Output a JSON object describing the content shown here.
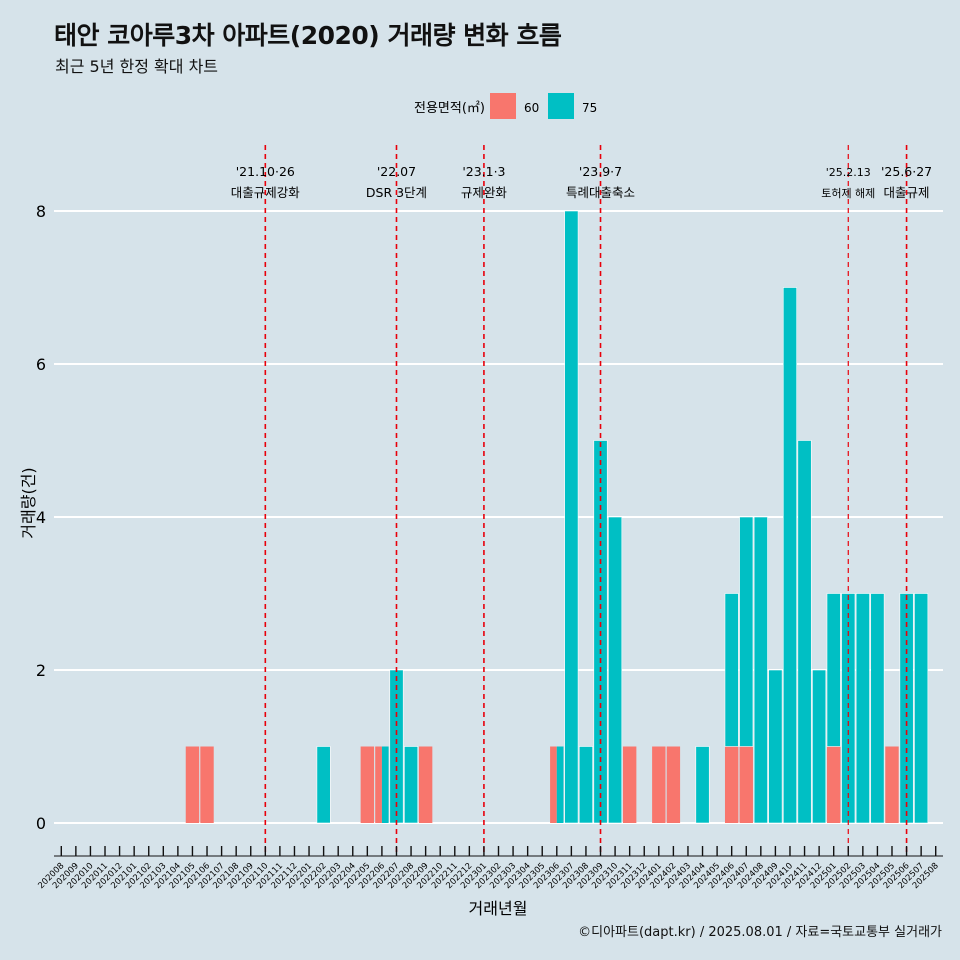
{
  "header": {
    "title": "태안 코아루3차 아파트(2020) 거래량 변화 흐름",
    "subtitle": "최근 5년 한정 확대 차트"
  },
  "caption": "©디아파트(dapt.kr) / 2025.08.01 / 자료=국토교통부 실거래가",
  "legend": {
    "title": "전용면적(㎡)",
    "items": [
      {
        "label": "60",
        "color": "#f8766d"
      },
      {
        "label": "75",
        "color": "#00bfc4"
      }
    ]
  },
  "colors": {
    "background": "#d6e3ea",
    "grid": "#ffffff",
    "event_line": "#e8000b",
    "area_60": "#f8766d",
    "area_75": "#00bfc4"
  },
  "chart_data": {
    "type": "bar",
    "stacked": true,
    "xlabel": "거래년월",
    "ylabel": "거래량(건)",
    "ylim": [
      0,
      8.8
    ],
    "yticks": [
      0,
      2,
      4,
      6,
      8
    ],
    "grid": "horizontal",
    "legend_position": "top",
    "categories": [
      "202008",
      "202009",
      "202010",
      "202011",
      "202012",
      "202101",
      "202102",
      "202103",
      "202104",
      "202105",
      "202106",
      "202107",
      "202108",
      "202109",
      "202110",
      "202111",
      "202112",
      "202201",
      "202202",
      "202203",
      "202204",
      "202205",
      "202206",
      "202207",
      "202208",
      "202209",
      "202210",
      "202211",
      "202212",
      "202301",
      "202302",
      "202303",
      "202304",
      "202305",
      "202306",
      "202307",
      "202308",
      "202309",
      "202310",
      "202311",
      "202312",
      "202401",
      "202402",
      "202403",
      "202404",
      "202405",
      "202406",
      "202407",
      "202408",
      "202409",
      "202410",
      "202411",
      "202412",
      "202501",
      "202502",
      "202503",
      "202504",
      "202505",
      "202506",
      "202507",
      "202508"
    ],
    "series": [
      {
        "name": "60",
        "values": [
          0,
          0,
          0,
          0,
          0,
          0,
          0,
          0,
          0,
          1,
          1,
          0,
          0,
          0,
          0,
          0,
          0,
          0,
          0,
          0,
          0,
          1,
          1,
          0,
          0,
          1,
          0,
          0,
          0,
          0,
          0,
          0,
          0,
          0,
          1,
          0,
          0,
          0,
          0,
          1,
          0,
          1,
          1,
          0,
          0,
          0,
          1,
          1,
          0,
          0,
          0,
          0,
          0,
          1,
          0,
          0,
          0,
          1,
          0,
          0,
          0
        ]
      },
      {
        "name": "75",
        "values": [
          0,
          0,
          0,
          0,
          0,
          0,
          0,
          0,
          0,
          0,
          0,
          0,
          0,
          0,
          0,
          0,
          0,
          0,
          1,
          0,
          0,
          0,
          1,
          2,
          1,
          0,
          0,
          0,
          0,
          0,
          0,
          0,
          0,
          0,
          1,
          8,
          1,
          5,
          4,
          0,
          0,
          0,
          0,
          0,
          1,
          0,
          2,
          3,
          4,
          2,
          7,
          5,
          2,
          2,
          3,
          3,
          3,
          0,
          3,
          3,
          0
        ]
      }
    ],
    "events": [
      {
        "month": "202110",
        "date": "'21.10·26",
        "label": "대출규제강화",
        "small": false
      },
      {
        "month": "202207",
        "date": "'22.07",
        "label": "DSR 3단계",
        "small": false
      },
      {
        "month": "202301",
        "date": "'23.1·3",
        "label": "규제완화",
        "small": false
      },
      {
        "month": "202309",
        "date": "'23.9·7",
        "label": "특례대출축소",
        "small": false
      },
      {
        "month": "202502",
        "date": "'25.2.13",
        "label": "토허제 해제",
        "small": true
      },
      {
        "month": "202506",
        "date": "'25.6·27",
        "label": "대출규제",
        "small": false
      }
    ]
  }
}
